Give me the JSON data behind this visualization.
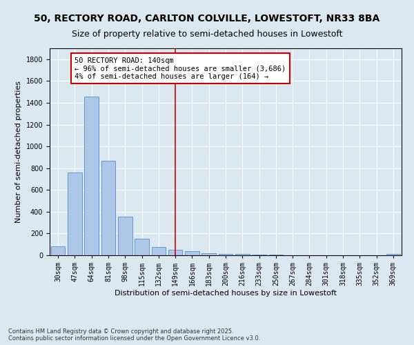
{
  "title_line1": "50, RECTORY ROAD, CARLTON COLVILLE, LOWESTOFT, NR33 8BA",
  "title_line2": "Size of property relative to semi-detached houses in Lowestoft",
  "xlabel": "Distribution of semi-detached houses by size in Lowestoft",
  "ylabel": "Number of semi-detached properties",
  "categories": [
    "30sqm",
    "47sqm",
    "64sqm",
    "81sqm",
    "98sqm",
    "115sqm",
    "132sqm",
    "149sqm",
    "166sqm",
    "183sqm",
    "200sqm",
    "216sqm",
    "233sqm",
    "250sqm",
    "267sqm",
    "284sqm",
    "301sqm",
    "318sqm",
    "335sqm",
    "352sqm",
    "369sqm"
  ],
  "values": [
    85,
    760,
    1455,
    870,
    355,
    155,
    75,
    50,
    35,
    20,
    10,
    10,
    5,
    5,
    0,
    0,
    0,
    0,
    0,
    0,
    10
  ],
  "bar_color": "#aec6e8",
  "bar_edge_color": "#5b9bd5",
  "vline_x": 7,
  "vline_color": "#cc0000",
  "annotation_text": "50 RECTORY ROAD: 140sqm\n← 96% of semi-detached houses are smaller (3,686)\n4% of semi-detached houses are larger (164) →",
  "annotation_box_color": "#ffffff",
  "annotation_box_edge": "#cc0000",
  "ylim": [
    0,
    1900
  ],
  "yticks": [
    0,
    200,
    400,
    600,
    800,
    1000,
    1200,
    1400,
    1600,
    1800
  ],
  "background_color": "#dce8f0",
  "plot_background_color": "#dce8f0",
  "footer_text": "Contains HM Land Registry data © Crown copyright and database right 2025.\nContains public sector information licensed under the Open Government Licence v3.0.",
  "title_fontsize": 10,
  "subtitle_fontsize": 9,
  "axis_label_fontsize": 8,
  "tick_fontsize": 7,
  "annotation_fontsize": 7.5,
  "footer_fontsize": 6
}
